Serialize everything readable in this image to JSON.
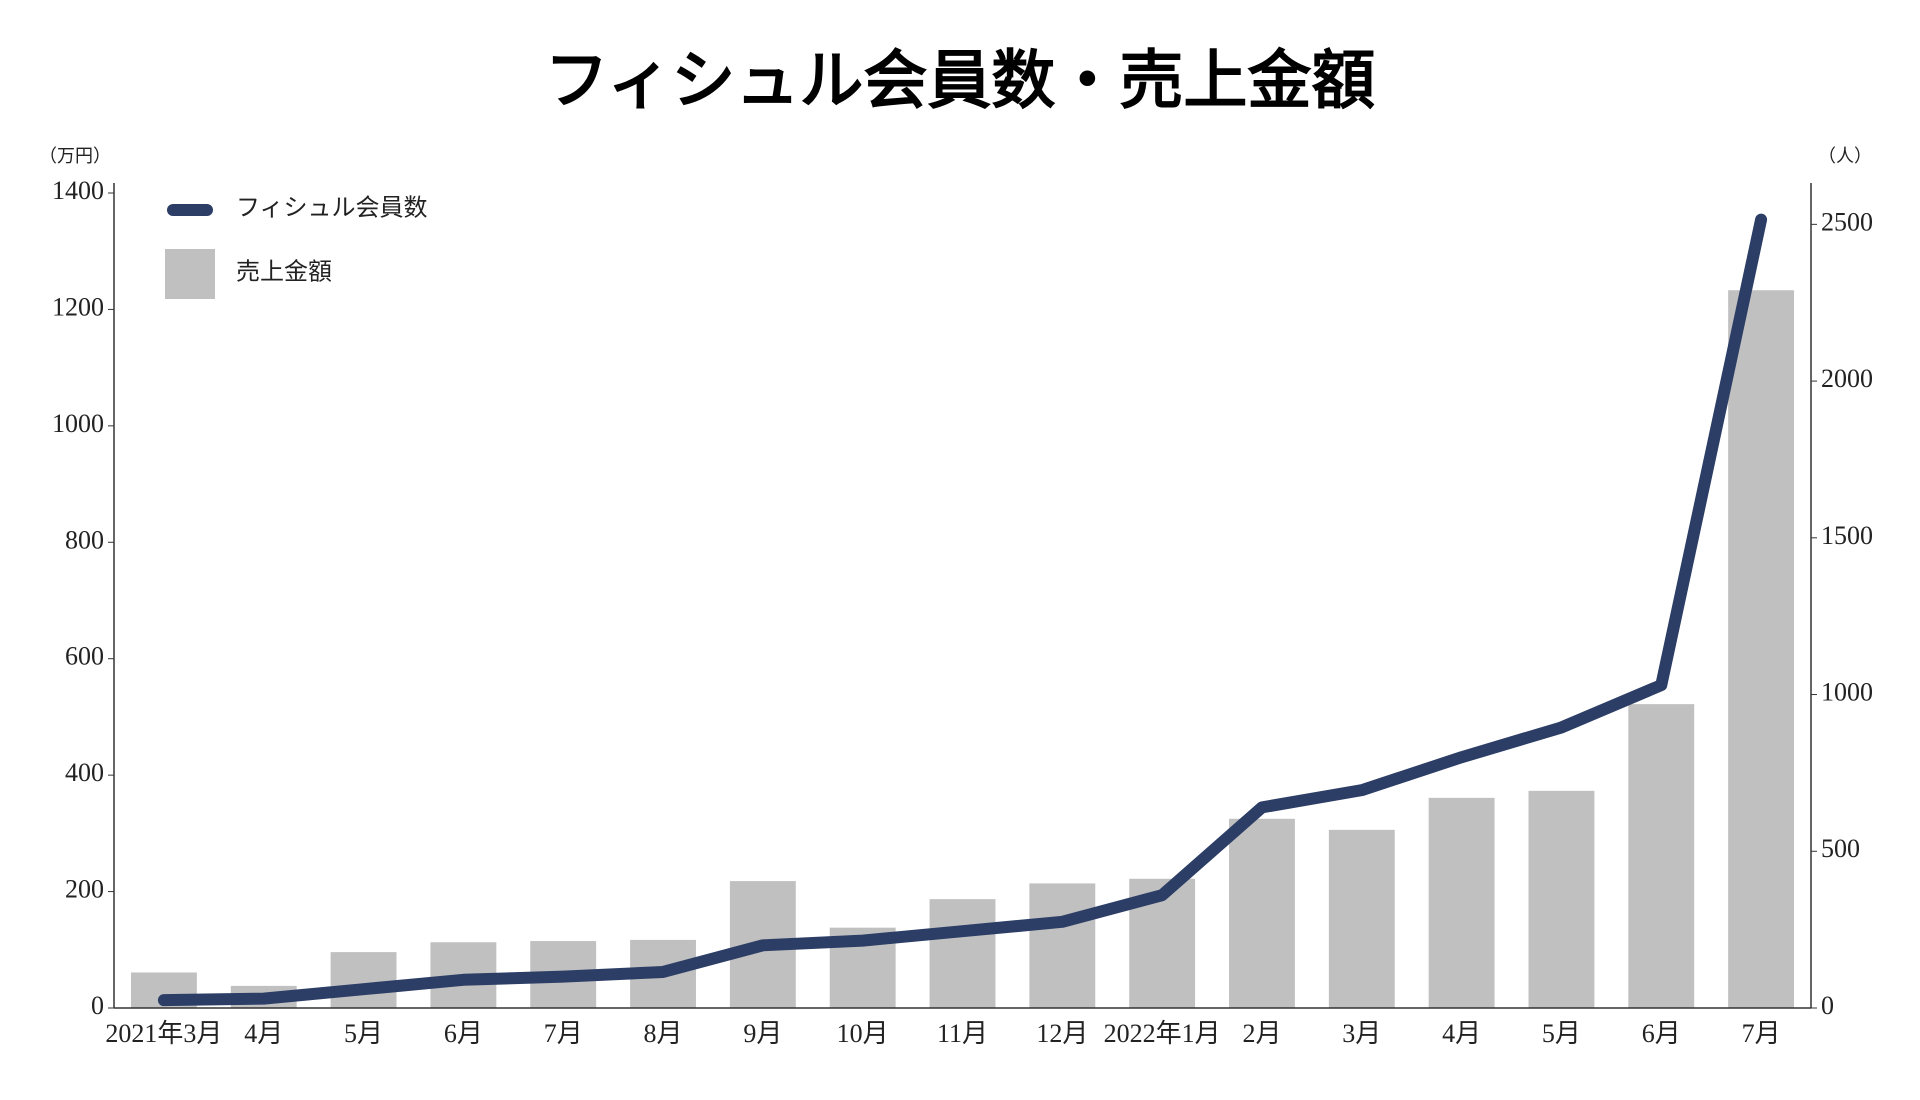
{
  "chart_data": {
    "type": "bar-line",
    "title": "フィシュル会員数・売上金額",
    "y_unit": "（万円）",
    "y2_unit": "（人）",
    "categories": [
      "2021年3月",
      "4月",
      "5月",
      "6月",
      "7月",
      "8月",
      "9月",
      "10月",
      "11月",
      "12月",
      "2022年1月",
      "2月",
      "3月",
      "4月",
      "5月",
      "6月",
      "7月"
    ],
    "series": [
      {
        "name": "フィシュル会員数",
        "type": "line",
        "axis": "y2",
        "color": "#2c3e66",
        "values": [
          25,
          30,
          60,
          90,
          100,
          115,
          200,
          215,
          245,
          275,
          360,
          640,
          695,
          800,
          895,
          1030,
          2515
        ]
      },
      {
        "name": "売上金額",
        "type": "bar",
        "color": "#c0c0c0",
        "values": [
          61,
          38,
          96,
          113,
          115,
          117,
          218,
          138,
          187,
          214,
          222,
          325,
          306,
          361,
          373,
          522,
          1233
        ]
      }
    ],
    "ylim": [
      0,
      1400
    ],
    "yticks": [
      0,
      200,
      400,
      600,
      800,
      1000,
      1200,
      1400
    ],
    "y2lim": [
      0,
      2600
    ],
    "y2ticks": [
      0,
      500,
      1000,
      1500,
      2000,
      2500
    ]
  }
}
